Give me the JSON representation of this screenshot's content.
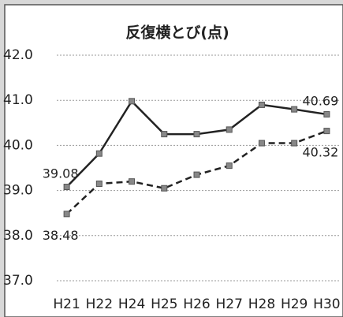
{
  "chart_data": {
    "type": "line",
    "title": "反復横とび(点)",
    "categories": [
      "H21",
      "H22",
      "H24",
      "H25",
      "H26",
      "H27",
      "H28",
      "H29",
      "H30"
    ],
    "series": [
      {
        "color": "#222222",
        "dash": "solid",
        "values": [
          39.08,
          39.82,
          40.98,
          40.25,
          40.25,
          40.35,
          40.9,
          40.8,
          40.69
        ]
      },
      {
        "color": "#222222",
        "dash": "dashed",
        "values": [
          38.48,
          39.15,
          39.2,
          39.05,
          39.35,
          39.55,
          40.05,
          40.05,
          40.32
        ]
      }
    ],
    "ylim": [
      37,
      42
    ],
    "yticks": [
      {
        "value": 37,
        "label": "37.0"
      },
      {
        "value": 38,
        "label": "38.0"
      },
      {
        "value": 39,
        "label": "39.0"
      },
      {
        "value": 40,
        "label": "40.0"
      },
      {
        "value": 41,
        "label": "41.0"
      },
      {
        "value": 42,
        "label": "42.0"
      }
    ],
    "grid": true
  }
}
